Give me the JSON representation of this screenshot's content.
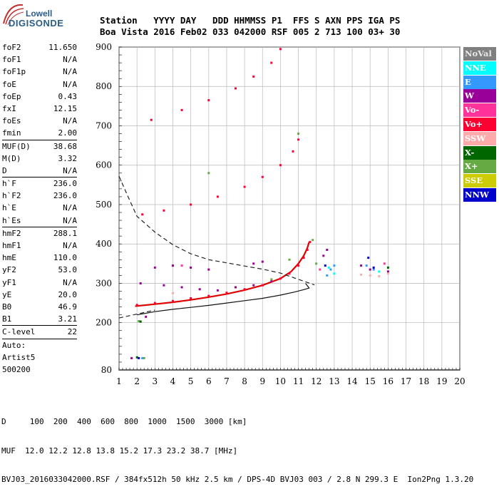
{
  "logo": {
    "line1": "Lowell",
    "line2": "DIGISONDE"
  },
  "header": {
    "row1": "Station   YYYY DAY   DDD HHMMSS P1  FFS S AXN PPS IGA PS",
    "row2": "Boa Vista 2016 Feb02 033 042000 RSF 005 2 713 100 03+ 30"
  },
  "params": {
    "group1": [
      {
        "label": "foF2",
        "value": "11.650"
      },
      {
        "label": "foF1",
        "value": "N/A"
      },
      {
        "label": "foF1p",
        "value": "N/A"
      },
      {
        "label": "foE",
        "value": "N/A"
      },
      {
        "label": "foEp",
        "value": "0.43"
      },
      {
        "label": "fxI",
        "value": "12.15"
      },
      {
        "label": "foEs",
        "value": "N/A"
      },
      {
        "label": "fmin",
        "value": "2.00"
      }
    ],
    "group2": [
      {
        "label": "MUF(D)",
        "value": "38.68"
      },
      {
        "label": "M(D)",
        "value": "3.32"
      },
      {
        "label": "D",
        "value": "N/A"
      }
    ],
    "group3": [
      {
        "label": "h`F",
        "value": "236.0"
      },
      {
        "label": "h`F2",
        "value": "236.0"
      },
      {
        "label": "h`E",
        "value": "N/A"
      },
      {
        "label": "h`Es",
        "value": "N/A"
      }
    ],
    "group4": [
      {
        "label": "hmF2",
        "value": "288.1"
      },
      {
        "label": "hmF1",
        "value": "N/A"
      },
      {
        "label": "hmE",
        "value": "110.0"
      },
      {
        "label": "yF2",
        "value": "53.0"
      },
      {
        "label": "yF1",
        "value": "N/A"
      },
      {
        "label": "yE",
        "value": "20.0"
      },
      {
        "label": "B0",
        "value": "46.9"
      },
      {
        "label": "B1",
        "value": "3.21"
      }
    ],
    "group5": [
      {
        "label": "C-level",
        "value": "22"
      }
    ],
    "auto": [
      "Auto:",
      "Artist5",
      "500200"
    ]
  },
  "legend": [
    {
      "label": "NoVal",
      "bg": "#808080",
      "fg": "#e8e8e8"
    },
    {
      "label": "NNE",
      "bg": "#00ffff",
      "fg": "#ffffff"
    },
    {
      "label": "E",
      "bg": "#3399ff",
      "fg": "#ffffff"
    },
    {
      "label": "W",
      "bg": "#990099",
      "fg": "#ffffff"
    },
    {
      "label": "Vo-",
      "bg": "#ff3399",
      "fg": "#ffffff"
    },
    {
      "label": "Vo+",
      "bg": "#ff0033",
      "fg": "#ffffff"
    },
    {
      "label": "SSW",
      "bg": "#ffaaaa",
      "fg": "#ffffff"
    },
    {
      "label": "X-",
      "bg": "#006600",
      "fg": "#ffffff"
    },
    {
      "label": "X+",
      "bg": "#66aa44",
      "fg": "#ffffff"
    },
    {
      "label": "SSE",
      "bg": "#cccc00",
      "fg": "#ffffff"
    },
    {
      "label": "NNW",
      "bg": "#0000cc",
      "fg": "#ffffff"
    }
  ],
  "footer": {
    "line1": "D     100  200  400  600  800  1000  1500  3000 [km]",
    "line2": "MUF  12.0 12.2 12.8 13.8 15.2 17.3 23.2 38.7 [MHz]",
    "line3": "BVJ03_2016033042000.RSF / 384fx512h 50 kHz 2.5 km / DPS-4D BVJ03 003 / 2.8 N 299.3 E  Ion2Png 1.3.20"
  },
  "chart_data": {
    "type": "scatter",
    "xlabel": "",
    "ylabel": "",
    "xlim": [
      1,
      20
    ],
    "ylim": [
      80,
      900
    ],
    "xticks": [
      1,
      2,
      3,
      4,
      5,
      6,
      7,
      8,
      9,
      10,
      11,
      12,
      13,
      14,
      15,
      16,
      17,
      18,
      19,
      20
    ],
    "yticks": [
      80,
      200,
      300,
      400,
      500,
      600,
      700,
      800,
      900
    ],
    "grid": true,
    "legend_position": "right",
    "series": [
      {
        "name": "Vo+",
        "color": "#ff0033",
        "points": [
          [
            2.0,
            245
          ],
          [
            3.0,
            250
          ],
          [
            4.0,
            255
          ],
          [
            5.0,
            262
          ],
          [
            6.0,
            268
          ],
          [
            7.0,
            276
          ],
          [
            8.0,
            285
          ],
          [
            9.0,
            295
          ],
          [
            10.0,
            312
          ],
          [
            10.5,
            325
          ],
          [
            11.0,
            345
          ],
          [
            11.3,
            365
          ],
          [
            11.5,
            385
          ],
          [
            11.65,
            405
          ],
          [
            2.3,
            475
          ],
          [
            3.5,
            485
          ],
          [
            5.0,
            500
          ],
          [
            6.5,
            520
          ],
          [
            8.0,
            545
          ],
          [
            9.0,
            570
          ],
          [
            10.0,
            600
          ],
          [
            10.7,
            635
          ],
          [
            11.0,
            665
          ],
          [
            2.8,
            715
          ],
          [
            4.5,
            740
          ],
          [
            6.0,
            765
          ],
          [
            7.5,
            795
          ],
          [
            8.5,
            825
          ],
          [
            9.5,
            860
          ],
          [
            10.0,
            895
          ]
        ]
      },
      {
        "name": "W",
        "color": "#990099",
        "points": [
          [
            2.2,
            300
          ],
          [
            3.5,
            295
          ],
          [
            4.5,
            290
          ],
          [
            5.5,
            285
          ],
          [
            6.5,
            282
          ],
          [
            7.5,
            290
          ],
          [
            8.5,
            295
          ],
          [
            9.5,
            305
          ],
          [
            3.0,
            340
          ],
          [
            4.0,
            345
          ],
          [
            5.0,
            340
          ],
          [
            6.0,
            335
          ],
          [
            8.5,
            350
          ],
          [
            9.0,
            355
          ],
          [
            12.4,
            370
          ],
          [
            12.6,
            385
          ],
          [
            15.0,
            335
          ],
          [
            14.5,
            345
          ],
          [
            16.0,
            330
          ],
          [
            2.5,
            215
          ],
          [
            1.7,
            110
          ]
        ]
      },
      {
        "name": "E",
        "color": "#3399ff",
        "points": [
          [
            12.6,
            320
          ],
          [
            12.8,
            335
          ],
          [
            13.0,
            345
          ],
          [
            14.8,
            345
          ],
          [
            15.2,
            335
          ],
          [
            2.3,
            110
          ]
        ]
      },
      {
        "name": "NNE",
        "color": "#00ffff",
        "points": [
          [
            12.7,
            340
          ],
          [
            13.0,
            325
          ],
          [
            15.5,
            330
          ]
        ]
      },
      {
        "name": "X+",
        "color": "#66aa44",
        "points": [
          [
            11.8,
            410
          ],
          [
            12.0,
            350
          ],
          [
            9.5,
            310
          ],
          [
            11.0,
            680
          ],
          [
            10.5,
            360
          ],
          [
            6.0,
            580
          ],
          [
            2.1,
            204
          ],
          [
            2.4,
            110
          ]
        ]
      },
      {
        "name": "X-",
        "color": "#006600",
        "points": [
          [
            2.2,
            203
          ],
          [
            2.0,
            112
          ],
          [
            16.0,
            340
          ]
        ]
      },
      {
        "name": "SSW",
        "color": "#ffaaaa",
        "points": [
          [
            15.0,
            320
          ],
          [
            15.5,
            318
          ],
          [
            14.5,
            322
          ],
          [
            16.0,
            325
          ],
          [
            4.0,
            275
          ]
        ]
      },
      {
        "name": "Vo-",
        "color": "#ff3399",
        "points": [
          [
            15.8,
            350
          ],
          [
            12.2,
            335
          ],
          [
            4.5,
            345
          ]
        ]
      },
      {
        "name": "NNW",
        "color": "#0000cc",
        "points": [
          [
            12.5,
            345
          ],
          [
            15.2,
            340
          ],
          [
            14.9,
            365
          ],
          [
            2.1,
            110
          ]
        ]
      }
    ],
    "curves": [
      {
        "name": "trace",
        "style": "solid-red",
        "points": [
          [
            1.9,
            242
          ],
          [
            3,
            247
          ],
          [
            4,
            252
          ],
          [
            5,
            258
          ],
          [
            6,
            265
          ],
          [
            7,
            273
          ],
          [
            8,
            283
          ],
          [
            9,
            295
          ],
          [
            10,
            312
          ],
          [
            10.6,
            330
          ],
          [
            11.0,
            350
          ],
          [
            11.3,
            370
          ],
          [
            11.5,
            390
          ],
          [
            11.6,
            405
          ]
        ]
      },
      {
        "name": "profile",
        "style": "solid-black",
        "points": [
          [
            2.0,
            220
          ],
          [
            3,
            228
          ],
          [
            4,
            234
          ],
          [
            5,
            239
          ],
          [
            6,
            244
          ],
          [
            7,
            250
          ],
          [
            8,
            256
          ],
          [
            9,
            262
          ],
          [
            10,
            270
          ],
          [
            10.8,
            278
          ],
          [
            11.3,
            284
          ],
          [
            11.6,
            288
          ],
          [
            11.4,
            300
          ]
        ]
      },
      {
        "name": "MUF",
        "style": "dashed-black",
        "points": [
          [
            1.0,
            572
          ],
          [
            1.5,
            520
          ],
          [
            2.0,
            470
          ],
          [
            3.0,
            430
          ],
          [
            4.0,
            398
          ],
          [
            5.0,
            375
          ],
          [
            6.0,
            360
          ],
          [
            7.0,
            352
          ],
          [
            8.0,
            344
          ],
          [
            9.0,
            336
          ],
          [
            10.0,
            326
          ],
          [
            11.0,
            310
          ],
          [
            11.9,
            296
          ]
        ]
      },
      {
        "name": "lower-dashed",
        "style": "dashed-black",
        "points": [
          [
            1.0,
            212
          ],
          [
            2.0,
            222
          ],
          [
            3.0,
            232
          ]
        ]
      }
    ]
  }
}
